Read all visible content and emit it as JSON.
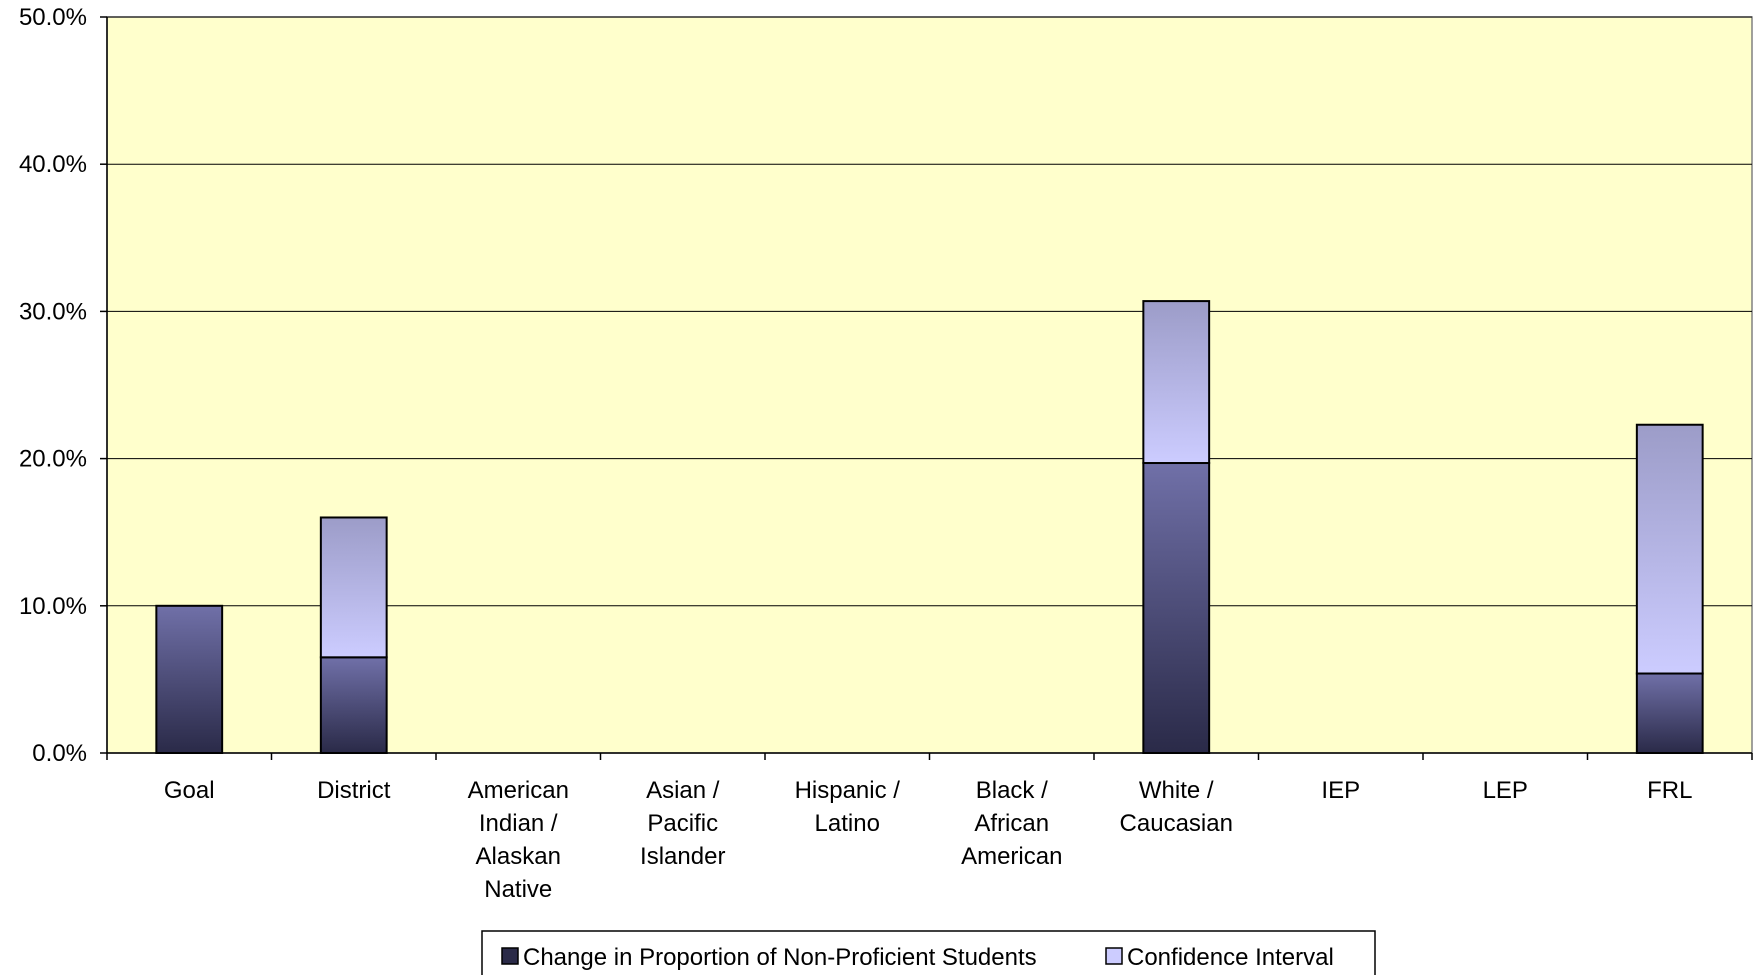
{
  "chart_data": {
    "type": "bar",
    "stacked": true,
    "title": "",
    "xlabel": "",
    "ylabel": "",
    "categories": [
      [
        "Goal"
      ],
      [
        "District"
      ],
      [
        "American",
        "Indian /",
        "Alaskan",
        "Native"
      ],
      [
        "Asian /",
        "Pacific",
        "Islander"
      ],
      [
        "Hispanic /",
        "Latino"
      ],
      [
        "Black /",
        "African",
        "American"
      ],
      [
        "White /",
        "Caucasian"
      ],
      [
        "IEP"
      ],
      [
        "LEP"
      ],
      [
        "FRL"
      ]
    ],
    "series": [
      {
        "name": "Change in Proportion of Non-Proficient Students",
        "values": [
          10.0,
          6.5,
          0,
          0,
          0,
          0,
          19.7,
          0,
          0,
          5.4
        ]
      },
      {
        "name": "Confidence Interval",
        "values": [
          0,
          9.5,
          0,
          0,
          0,
          0,
          11.0,
          0,
          0,
          16.9
        ]
      }
    ],
    "ylim": [
      0,
      50
    ],
    "yticks": [
      0,
      10,
      20,
      30,
      40,
      50
    ],
    "ytick_labels": [
      "0.0%",
      "10.0%",
      "20.0%",
      "30.0%",
      "40.0%",
      "50.0%"
    ],
    "grid": true,
    "legend_position": "bottom-center",
    "colors": {
      "plot_background": "#FFFFCC",
      "series_1_light": "#7070A8",
      "series_1_dark": "#2A2A48",
      "series_2_light": "#CCCCFF",
      "series_2_dark": "#9C9CC8",
      "gridline": "#000000"
    }
  }
}
